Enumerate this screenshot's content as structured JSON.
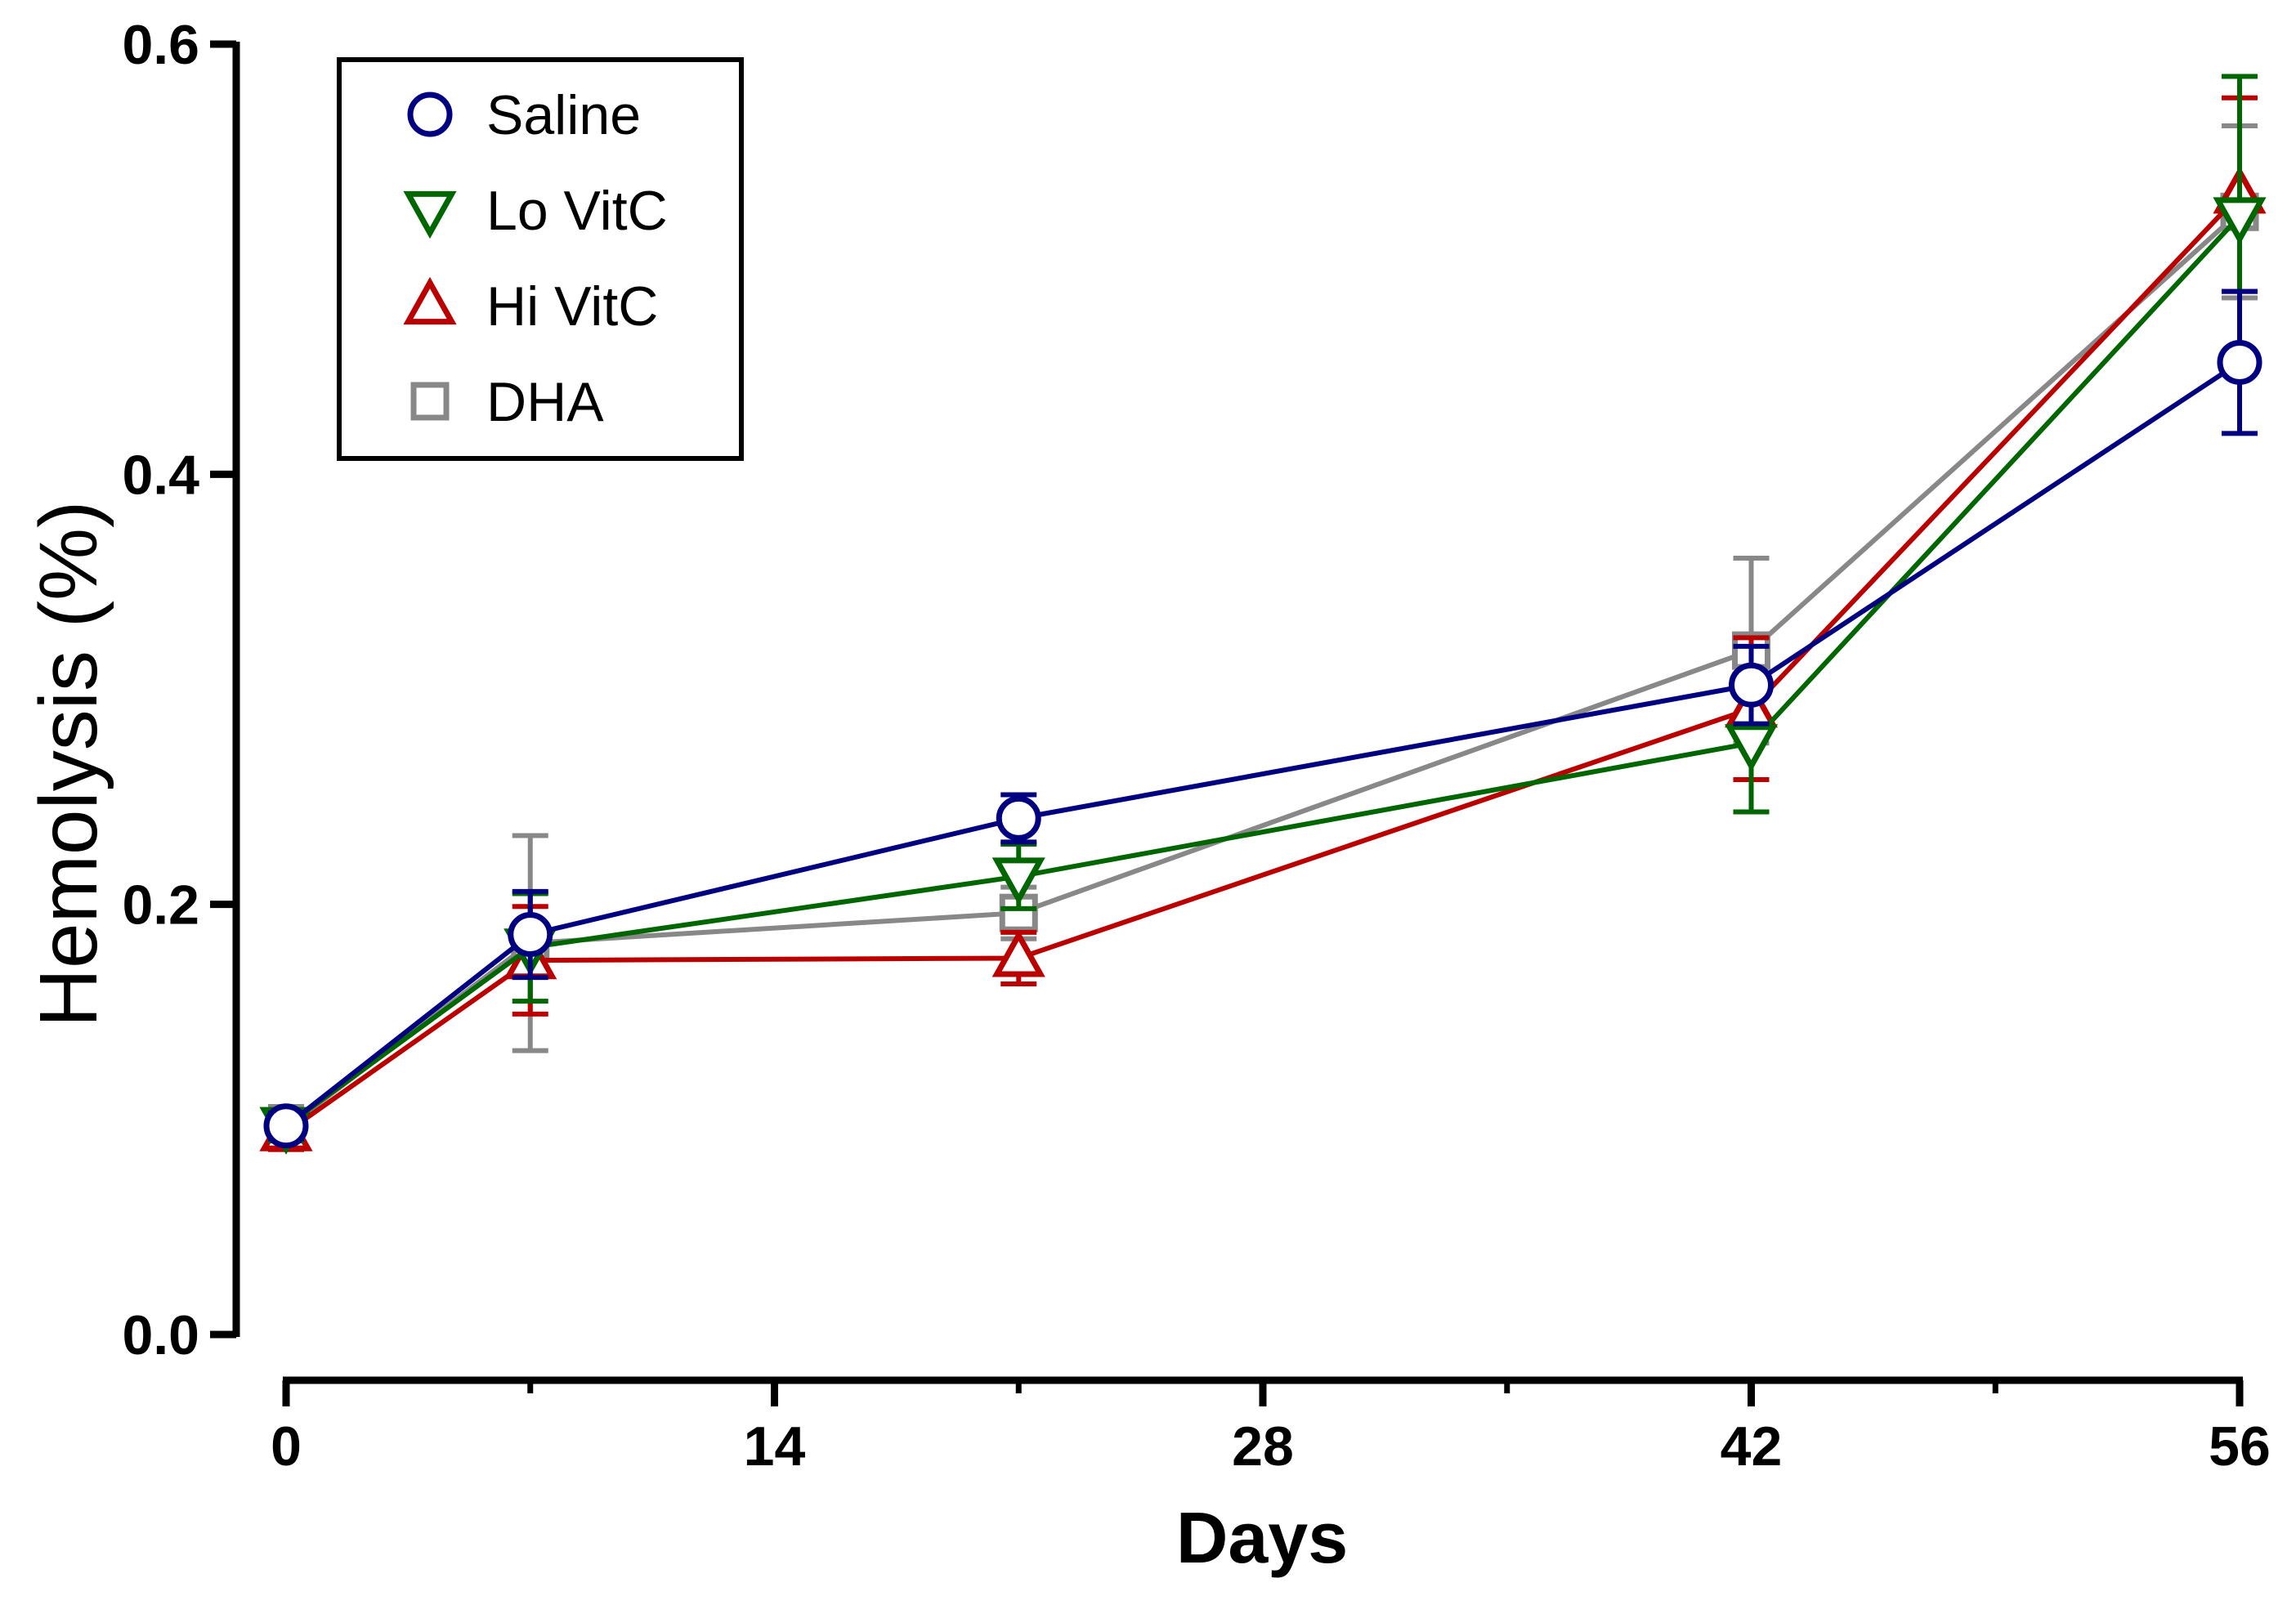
{
  "chart_data": {
    "type": "line",
    "title": "",
    "xlabel": "Days",
    "ylabel": "Hemolysis (%)",
    "xlim": [
      0,
      56
    ],
    "ylim": [
      0,
      0.6
    ],
    "x_ticks": [
      "0",
      "14",
      "28",
      "42",
      "56"
    ],
    "y_ticks": [
      "0.0",
      "0.2",
      "0.4",
      "0.6"
    ],
    "legend_position": "top-left",
    "grid": false,
    "series": [
      {
        "name": "DHA",
        "color": "#888888",
        "marker": "square",
        "x": [
          0,
          7,
          21,
          42,
          56
        ],
        "y": [
          0.096,
          0.182,
          0.196,
          0.318,
          0.522
        ],
        "err": [
          0.01,
          0.05,
          0.012,
          0.043,
          0.04
        ]
      },
      {
        "name": "Hi VitC",
        "color": "#bb0000",
        "marker": "triangle-up",
        "x": [
          0,
          7,
          21,
          42,
          56
        ],
        "y": [
          0.094,
          0.174,
          0.175,
          0.291,
          0.53
        ],
        "err": [
          0.008,
          0.025,
          0.012,
          0.033,
          0.045
        ]
      },
      {
        "name": "Lo VitC",
        "color": "#006600",
        "marker": "triangle-down",
        "x": [
          0,
          7,
          21,
          42,
          56
        ],
        "y": [
          0.097,
          0.18,
          0.213,
          0.275,
          0.52
        ],
        "err": [
          0.007,
          0.025,
          0.015,
          0.032,
          0.065
        ]
      },
      {
        "name": "Saline",
        "color": "#000080",
        "marker": "circle",
        "x": [
          0,
          7,
          21,
          42,
          56
        ],
        "y": [
          0.097,
          0.186,
          0.24,
          0.302,
          0.452
        ],
        "err": [
          0.006,
          0.02,
          0.011,
          0.018,
          0.033
        ]
      }
    ],
    "legend_entries": [
      {
        "name": "Saline",
        "color": "#000080",
        "marker": "circle"
      },
      {
        "name": "Lo VitC",
        "color": "#006600",
        "marker": "triangle-down"
      },
      {
        "name": "Hi VitC",
        "color": "#bb0000",
        "marker": "triangle-up"
      },
      {
        "name": "DHA",
        "color": "#888888",
        "marker": "square"
      }
    ]
  }
}
